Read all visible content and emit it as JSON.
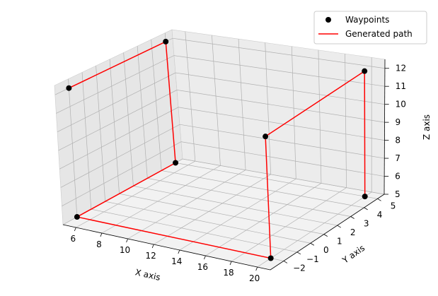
{
  "chart_data": {
    "type": "line3d",
    "title": "",
    "xlabel": "X axis",
    "ylabel": "Y axis",
    "zlabel": "Z axis",
    "xlim": [
      5,
      21
    ],
    "ylim": [
      -3,
      5.5
    ],
    "zlim": [
      5,
      12.5
    ],
    "xticks": [
      "6",
      "8",
      "10",
      "12",
      "14",
      "16",
      "18",
      "20"
    ],
    "yticks": [
      "−2",
      "−1",
      "0",
      "1",
      "2",
      "3",
      "4",
      "5"
    ],
    "zticks": [
      "5",
      "6",
      "7",
      "8",
      "9",
      "10",
      "11",
      "12"
    ],
    "grid": true,
    "legend_position": "upper right",
    "legend": [
      "Waypoints",
      "Generated path"
    ],
    "series": [
      {
        "name": "Waypoints",
        "kind": "markers",
        "color": "#000000",
        "points": [
          [
            5,
            -2,
            12
          ],
          [
            5,
            5,
            12
          ],
          [
            5,
            5,
            5
          ],
          [
            5,
            -2,
            5
          ],
          [
            20,
            -2,
            5
          ],
          [
            20,
            -2,
            12
          ],
          [
            20,
            5,
            12
          ],
          [
            20,
            5,
            5
          ]
        ]
      },
      {
        "name": "Generated path",
        "kind": "line",
        "color": "#ff0000",
        "points": [
          [
            5,
            -2,
            12
          ],
          [
            5,
            5,
            12
          ],
          [
            5,
            5,
            5
          ],
          [
            5,
            -2,
            5
          ],
          [
            20,
            -2,
            5
          ],
          [
            20,
            -2,
            12
          ],
          [
            20,
            5,
            12
          ],
          [
            20,
            5,
            5
          ]
        ]
      }
    ]
  }
}
